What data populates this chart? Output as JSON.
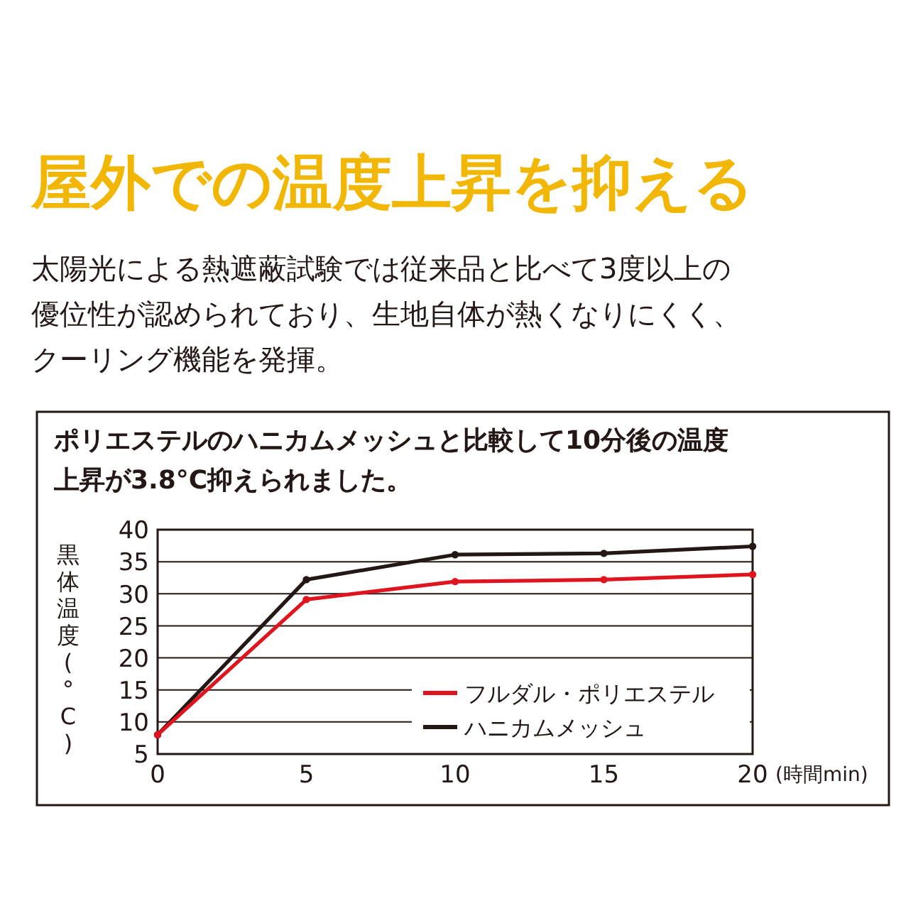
{
  "chart_data": {
    "type": "line",
    "title": "屋外での温度上昇を抑える",
    "subtitle": "太陽光による熱遮蔽試験では従来品と比べて3度以上の優位性が認められており、生地自体が熱くなりにくく、クーリング機能を発揮。",
    "annotations": [
      "ポリエステルのハニカムメッシュと比較して10分後の温度上昇が3.8°C抑えられました。"
    ],
    "xlabel": "(時間min)",
    "ylabel": "黒体温度(°C)",
    "x": [
      0,
      5,
      10,
      15,
      20
    ],
    "xlim": [
      0,
      20
    ],
    "xticks": [
      0,
      5,
      10,
      15,
      20
    ],
    "ylim": [
      5,
      40
    ],
    "yticks": [
      5,
      10,
      15,
      20,
      25,
      30,
      35,
      40
    ],
    "grid": "y",
    "legend": "bottom right",
    "marker": "circle",
    "line_style": "solid",
    "series": [
      {
        "name": "フルダル・ポリエステル",
        "color": "#e0141e",
        "values": [
          8,
          29.1,
          31.9,
          32.2,
          33.0
        ]
      },
      {
        "name": "ハニカムメッシュ",
        "color": "#231815",
        "values": [
          8,
          32.2,
          36.1,
          36.3,
          37.4
        ]
      }
    ]
  }
}
